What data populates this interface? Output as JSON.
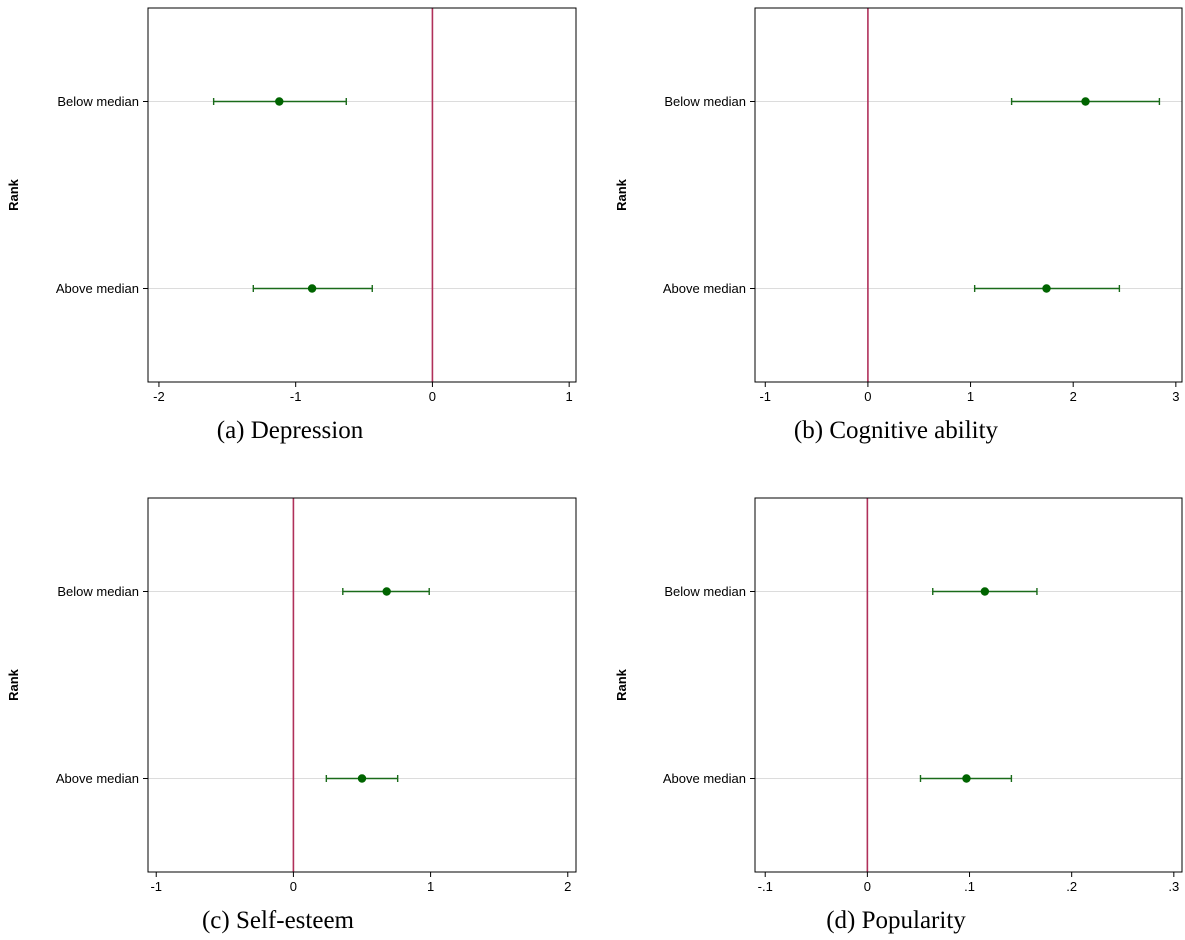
{
  "colors": {
    "point": "#006400",
    "ci": "#1a6b1a",
    "zero_line": "#b0305a",
    "gridline": "#dcdcdc",
    "frame": "#000000"
  },
  "chart_data": [
    {
      "type": "scatter",
      "caption": "(a) Depression",
      "ylabel": "Rank",
      "xlabel": "",
      "categories": [
        "Below median",
        "Above median"
      ],
      "points": [
        {
          "category": "Below median",
          "estimate": -1.12,
          "ci_low": -1.6,
          "ci_high": -0.63
        },
        {
          "category": "Above median",
          "estimate": -0.88,
          "ci_low": -1.31,
          "ci_high": -0.44
        }
      ],
      "xlim": [
        -2.08,
        1.05
      ],
      "xticks": [
        -2,
        -1,
        0,
        1
      ],
      "xtick_labels": [
        "-2",
        "-1",
        "0",
        "1"
      ],
      "reference_line_x": 0,
      "grid": "horizontal at categories"
    },
    {
      "type": "scatter",
      "caption": "(b) Cognitive ability",
      "ylabel": "Rank",
      "xlabel": "",
      "categories": [
        "Below median",
        "Above median"
      ],
      "points": [
        {
          "category": "Below median",
          "estimate": 2.12,
          "ci_low": 1.4,
          "ci_high": 2.84
        },
        {
          "category": "Above median",
          "estimate": 1.74,
          "ci_low": 1.04,
          "ci_high": 2.45
        }
      ],
      "xlim": [
        -1.1,
        3.06
      ],
      "xticks": [
        -1,
        0,
        1,
        2,
        3
      ],
      "xtick_labels": [
        "-1",
        "0",
        "1",
        "2",
        "3"
      ],
      "reference_line_x": 0,
      "grid": "horizontal at categories"
    },
    {
      "type": "scatter",
      "caption": "(c) Self-esteem",
      "ylabel": "Rank",
      "xlabel": "",
      "categories": [
        "Below median",
        "Above median"
      ],
      "points": [
        {
          "category": "Below median",
          "estimate": 0.68,
          "ci_low": 0.36,
          "ci_high": 0.99
        },
        {
          "category": "Above median",
          "estimate": 0.5,
          "ci_low": 0.24,
          "ci_high": 0.76
        }
      ],
      "xlim": [
        -1.06,
        2.06
      ],
      "xticks": [
        -1,
        0,
        1,
        2
      ],
      "xtick_labels": [
        "-1",
        "0",
        "1",
        "2"
      ],
      "reference_line_x": 0,
      "grid": "horizontal at categories"
    },
    {
      "type": "scatter",
      "caption": "(d) Popularity",
      "ylabel": "Rank",
      "xlabel": "",
      "categories": [
        "Below median",
        "Above median"
      ],
      "points": [
        {
          "category": "Below median",
          "estimate": 0.115,
          "ci_low": 0.064,
          "ci_high": 0.166
        },
        {
          "category": "Above median",
          "estimate": 0.097,
          "ci_low": 0.052,
          "ci_high": 0.141
        }
      ],
      "xlim": [
        -0.11,
        0.308
      ],
      "xticks": [
        -0.1,
        0,
        0.1,
        0.2,
        0.3
      ],
      "xtick_labels": [
        "-.1",
        "0",
        ".1",
        ".2",
        ".3"
      ],
      "reference_line_x": 0,
      "grid": "horizontal at categories"
    }
  ]
}
